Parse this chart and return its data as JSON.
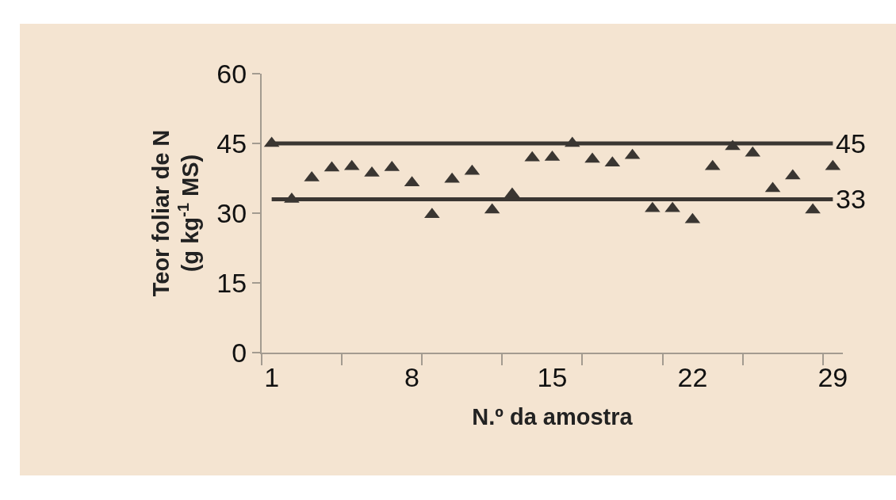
{
  "chart_data": {
    "type": "scatter",
    "xlabel": "N.º da amostra",
    "ylabel": "Teor foliar de N\n(g kg$^{-1}$ MS)",
    "x": [
      1,
      2,
      3,
      4,
      5,
      6,
      7,
      8,
      9,
      10,
      11,
      12,
      13,
      14,
      15,
      16,
      17,
      18,
      19,
      20,
      21,
      22,
      23,
      24,
      25,
      26,
      27,
      28,
      29
    ],
    "series": [
      {
        "color": "#3a3632",
        "values": [
          45,
          33,
          37.6,
          39.7,
          40,
          38.6,
          39.8,
          36.5,
          29.7,
          37.3,
          39,
          30.7,
          34.1,
          41.9,
          42,
          45,
          41.6,
          40.8,
          42.4,
          31,
          31,
          28.6,
          40,
          44.3,
          42.9,
          35.3,
          38,
          30.7,
          40
        ]
      }
    ],
    "marker": "triangle",
    "grid": false,
    "xlim": [
      0.5,
      29.5
    ],
    "xticks": [
      1,
      8,
      15,
      22,
      29,
      {
        "value": 0.5,
        "label": null
      },
      {
        "value": 4.5,
        "label": null
      },
      {
        "value": 8.5,
        "label": null
      },
      {
        "value": 12.5,
        "label": null
      },
      {
        "value": 16.5,
        "label": null
      },
      {
        "value": 20.5,
        "label": null
      },
      {
        "value": 24.5,
        "label": null
      },
      {
        "value": 28.5,
        "label": null
      }
    ],
    "ylim": [
      0,
      60
    ],
    "yticks": [
      0,
      15,
      30,
      45,
      60
    ],
    "ref_lines": [
      {
        "axis": "y",
        "value": 45,
        "label": "45",
        "color": "#3a3632"
      },
      {
        "axis": "y",
        "value": 33,
        "label": "33",
        "color": "#3a3632"
      }
    ]
  }
}
